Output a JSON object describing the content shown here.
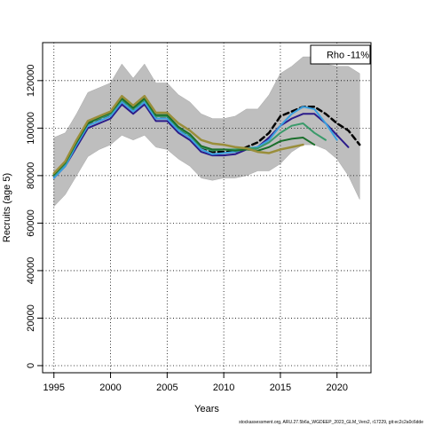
{
  "chart_data": {
    "type": "line",
    "xlabel": "Years",
    "ylabel": "Recruits (age 5)",
    "xlim": [
      1994,
      2023
    ],
    "ylim": [
      -3000,
      136000
    ],
    "x_ticks": [
      1995,
      2000,
      2005,
      2010,
      2015,
      2020
    ],
    "y_ticks": [
      0,
      20000,
      40000,
      60000,
      80000,
      100000,
      120000
    ],
    "grid": true,
    "legend_text": "Rho -11%",
    "legend_position": "top-right",
    "footer": "stockassessment.org, ARU.27.5b6a_WGDEEP_2023_GLM_Vers2, r17229, git:ec2c2a0c6dde",
    "confidence_band": {
      "color": "#bebebe",
      "x": [
        1995,
        1996,
        1997,
        1998,
        1999,
        2000,
        2001,
        2002,
        2003,
        2004,
        2005,
        2006,
        2007,
        2008,
        2009,
        2010,
        2011,
        2012,
        2013,
        2014,
        2015,
        2016,
        2017,
        2018,
        2019,
        2020,
        2021,
        2022
      ],
      "upper": [
        96000,
        98000,
        106000,
        115000,
        117000,
        119000,
        127000,
        121000,
        127000,
        119000,
        119000,
        114000,
        111000,
        106000,
        104000,
        104000,
        105000,
        108000,
        108000,
        114000,
        123000,
        126000,
        130000,
        130000,
        127000,
        126000,
        126000,
        123000
      ],
      "lower": [
        67000,
        72000,
        80000,
        88000,
        91000,
        93000,
        97000,
        95000,
        97000,
        92000,
        91000,
        87000,
        84000,
        79000,
        78000,
        79000,
        79000,
        80000,
        82000,
        82000,
        85000,
        90000,
        93000,
        93000,
        91000,
        87000,
        80000,
        70000
      ]
    },
    "series": [
      {
        "color": "#000000",
        "dashed": true,
        "width": 2.5,
        "x": [
          1995,
          1996,
          1997,
          1998,
          1999,
          2000,
          2001,
          2002,
          2003,
          2004,
          2005,
          2006,
          2007,
          2008,
          2009,
          2010,
          2011,
          2012,
          2013,
          2014,
          2015,
          2016,
          2017,
          2018,
          2019,
          2020,
          2021,
          2022
        ],
        "values": [
          80000,
          85000,
          94000,
          102000,
          104000,
          106000,
          112000,
          108000,
          112000,
          105000,
          105000,
          100000,
          97000,
          92000,
          90000,
          90000,
          90000,
          92000,
          94000,
          98000,
          105000,
          107000,
          109000,
          109000,
          106000,
          102000,
          99000,
          93000
        ]
      },
      {
        "color": "#2b1b8a",
        "dashed": false,
        "width": 2,
        "x": [
          1995,
          1996,
          1997,
          1998,
          1999,
          2000,
          2001,
          2002,
          2003,
          2004,
          2005,
          2006,
          2007,
          2008,
          2009,
          2010,
          2011,
          2012,
          2013,
          2014,
          2015,
          2016,
          2017,
          2018,
          2019,
          2020,
          2021
        ],
        "values": [
          79000,
          84000,
          92000,
          100000,
          102000,
          104000,
          110000,
          106000,
          110000,
          103000,
          103000,
          98000,
          95000,
          90000,
          88500,
          88500,
          89000,
          91000,
          92000,
          96000,
          101000,
          104000,
          106000,
          106000,
          102000,
          97000,
          92000
        ]
      },
      {
        "color": "#3aa0e0",
        "dashed": false,
        "width": 2,
        "x": [
          1995,
          1996,
          1997,
          1998,
          1999,
          2000,
          2001,
          2002,
          2003,
          2004,
          2005,
          2006,
          2007,
          2008,
          2009,
          2010,
          2011,
          2012,
          2013,
          2014,
          2015,
          2016,
          2017,
          2018,
          2019,
          2020
        ],
        "values": [
          79000,
          84000,
          93000,
          101000,
          103000,
          105000,
          111000,
          107000,
          111000,
          104000,
          104000,
          99000,
          96000,
          91000,
          89000,
          89500,
          90000,
          91500,
          92000,
          95000,
          101000,
          106000,
          109000,
          108000,
          102000,
          95000
        ]
      },
      {
        "color": "#3a9a6a",
        "dashed": false,
        "width": 2,
        "x": [
          1995,
          1996,
          1997,
          1998,
          1999,
          2000,
          2001,
          2002,
          2003,
          2004,
          2005,
          2006,
          2007,
          2008,
          2009,
          2010,
          2011,
          2012,
          2013,
          2014,
          2015,
          2016,
          2017,
          2018,
          2019
        ],
        "values": [
          80000,
          85000,
          94000,
          102000,
          104000,
          106000,
          112000,
          108000,
          112000,
          105000,
          105000,
          100000,
          97000,
          92000,
          90500,
          91000,
          91000,
          91500,
          91500,
          94000,
          98000,
          101000,
          102000,
          98000,
          95000
        ]
      },
      {
        "color": "#1a6e2a",
        "dashed": false,
        "width": 2,
        "x": [
          1995,
          1996,
          1997,
          1998,
          1999,
          2000,
          2001,
          2002,
          2003,
          2004,
          2005,
          2006,
          2007,
          2008,
          2009,
          2010,
          2011,
          2012,
          2013,
          2014,
          2015,
          2016,
          2017,
          2018
        ],
        "values": [
          80500,
          85500,
          94000,
          102000,
          104500,
          106500,
          112500,
          108500,
          112500,
          105500,
          105500,
          100500,
          97500,
          92500,
          91000,
          91000,
          90500,
          91000,
          90500,
          92000,
          94500,
          95500,
          96000,
          93000
        ]
      },
      {
        "color": "#9a8e3a",
        "dashed": false,
        "width": 2.5,
        "x": [
          1995,
          1996,
          1997,
          1998,
          1999,
          2000,
          2001,
          2002,
          2003,
          2004,
          2005,
          2006,
          2007,
          2008,
          2009,
          2010,
          2011,
          2012,
          2013,
          2014,
          2015,
          2016,
          2017
        ],
        "values": [
          81000,
          86000,
          95000,
          103000,
          105000,
          107000,
          113500,
          109500,
          113500,
          106500,
          106500,
          102000,
          99000,
          95000,
          93500,
          93000,
          92000,
          91500,
          90000,
          89500,
          91000,
          92000,
          93000
        ]
      }
    ]
  }
}
